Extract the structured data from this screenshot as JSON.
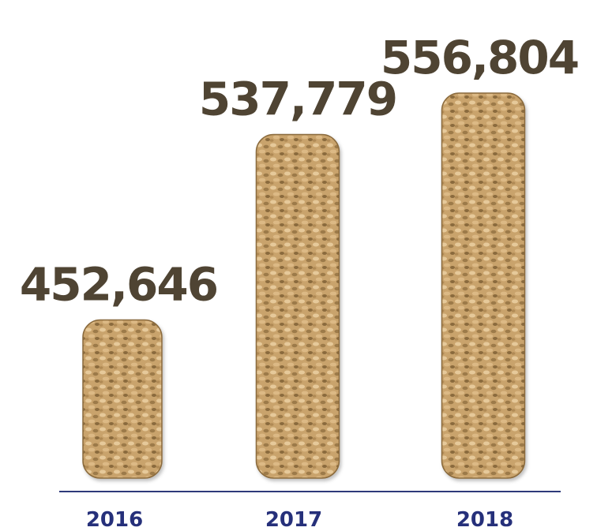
{
  "chart_data": {
    "type": "bar",
    "categories": [
      "2016",
      "2017",
      "2018"
    ],
    "values": [
      452646,
      537779,
      556804
    ],
    "value_labels": [
      "452,646",
      "537,779",
      "556,804"
    ],
    "title": "",
    "xlabel": "",
    "ylabel": "",
    "ylim": [
      0,
      600000
    ],
    "grid": false,
    "legend": "none"
  },
  "colors": {
    "bar_fill": "#c9a36c",
    "bar_dark": "#8a6a3c",
    "bar_light": "#e6c99a",
    "value_text": "#4f4433",
    "axis_line": "#2e3a7a",
    "year_text": "#26307a"
  }
}
